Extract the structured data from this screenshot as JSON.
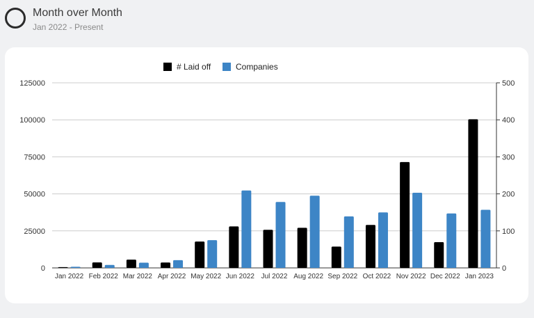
{
  "header": {
    "title": "Month over Month",
    "subtitle": "Jan 2022 - Present",
    "icon": "circle-icon"
  },
  "colors": {
    "laid_off": "#000000",
    "companies": "#3d85c6",
    "grid": "#cccccc"
  },
  "chart_data": {
    "type": "bar",
    "title": "",
    "xlabel": "",
    "ylabel": "",
    "categories": [
      "Jan 2022",
      "Feb 2022",
      "Mar 2022",
      "Apr 2022",
      "May 2022",
      "Jun 2022",
      "Jul 2022",
      "Aug 2022",
      "Sep 2022",
      "Oct 2022",
      "Nov 2022",
      "Dec 2022",
      "Jan 2023"
    ],
    "series": [
      {
        "name": "# Laid off",
        "axis": "left",
        "values": [
          510,
          3690,
          5580,
          3660,
          17800,
          28000,
          25700,
          27100,
          14400,
          29000,
          71500,
          17400,
          100400
        ]
      },
      {
        "name": "Companies",
        "axis": "right",
        "values": [
          3,
          8,
          14,
          21,
          75,
          209,
          178,
          195,
          139,
          150,
          203,
          147,
          157
        ]
      }
    ],
    "ylim_left": [
      0,
      125000
    ],
    "ylim_right": [
      0,
      500
    ],
    "yticks_left": [
      "0",
      "25000",
      "50000",
      "75000",
      "100000",
      "125000"
    ],
    "yticks_right": [
      "0",
      "100",
      "200",
      "300",
      "400",
      "500"
    ],
    "grid": true,
    "legend": "top"
  }
}
